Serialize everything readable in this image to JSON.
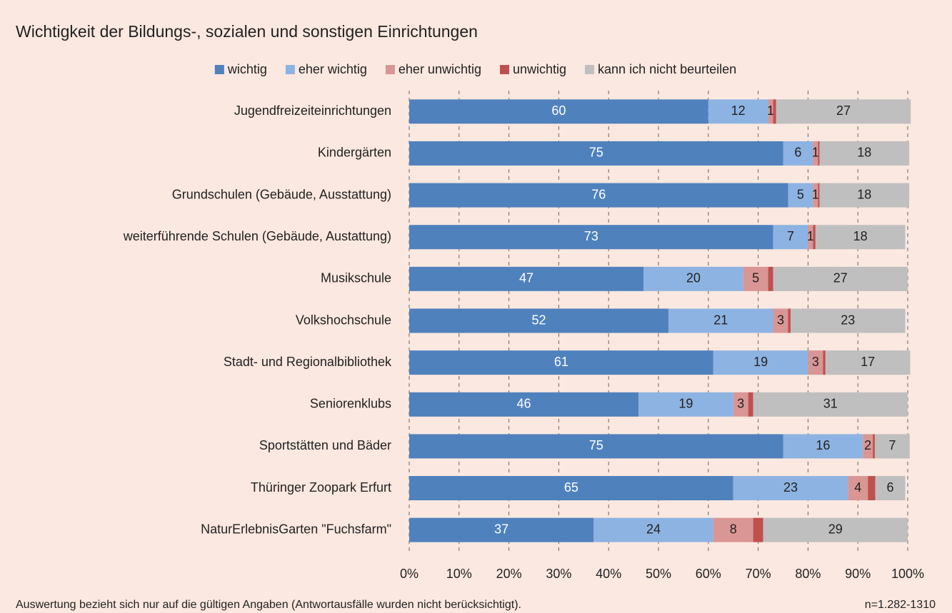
{
  "chart_data": {
    "type": "stacked_barh",
    "title": "Wichtigkeit der Bildungs-, sozialen und sonstigen Einrichtungen",
    "categories": [
      "Jugendfreizeiteinrichtungen",
      "Kindergärten",
      "Grundschulen (Gebäude, Ausstattung)",
      "weiterführende Schulen (Gebäude, Austattung)",
      "Musikschule",
      "Volkshochschule",
      "Stadt- und Regionalbibliothek",
      "Seniorenklubs",
      "Sportstätten und Bäder",
      "Thüringer Zoopark Erfurt",
      "NaturErlebnisGarten \"Fuchsfarm\""
    ],
    "series": [
      {
        "name": "wichtig",
        "color": "#4f81bd",
        "label_color": "#ffffff",
        "values": [
          60,
          75,
          76,
          73,
          47,
          52,
          61,
          46,
          75,
          65,
          37
        ]
      },
      {
        "name": "eher wichtig",
        "color": "#8db3e2",
        "label_color": "#222222",
        "values": [
          12,
          6,
          5,
          7,
          20,
          21,
          19,
          19,
          16,
          23,
          24
        ]
      },
      {
        "name": "eher unwichtig",
        "color": "#d99694",
        "label_color": "#222222",
        "values": [
          1,
          1,
          1,
          1,
          5,
          3,
          3,
          3,
          2,
          4,
          8
        ]
      },
      {
        "name": "unwichtig",
        "color": "#c0504d",
        "show_value_labels": false,
        "values": [
          0.6,
          0.3,
          0.3,
          0.5,
          1,
          0.5,
          0.5,
          1,
          0.4,
          1.5,
          2
        ]
      },
      {
        "name": "kann ich nicht beurteilen",
        "color": "#bfbfbf",
        "label_color": "#222222",
        "values": [
          27,
          18,
          18,
          18,
          27,
          23,
          17,
          31,
          7,
          6,
          29
        ]
      }
    ],
    "xlim": [
      0,
      100
    ],
    "xticks": [
      {
        "value": 0,
        "label": "0%"
      },
      {
        "value": 10,
        "label": "10%"
      },
      {
        "value": 20,
        "label": "20%"
      },
      {
        "value": 30,
        "label": "30%"
      },
      {
        "value": 40,
        "label": "40%"
      },
      {
        "value": 50,
        "label": "50%"
      },
      {
        "value": 60,
        "label": "60%"
      },
      {
        "value": 70,
        "label": "70%"
      },
      {
        "value": 80,
        "label": "80%"
      },
      {
        "value": 90,
        "label": "90%"
      },
      {
        "value": 100,
        "label": "100%"
      }
    ],
    "grid": true,
    "legend": "top",
    "footnote": "Auswertung bezieht sich nur auf die gültigen Angaben (Antwortausfälle wurden nicht berücksichtigt).",
    "sample_note": "n=1.282-1310"
  }
}
